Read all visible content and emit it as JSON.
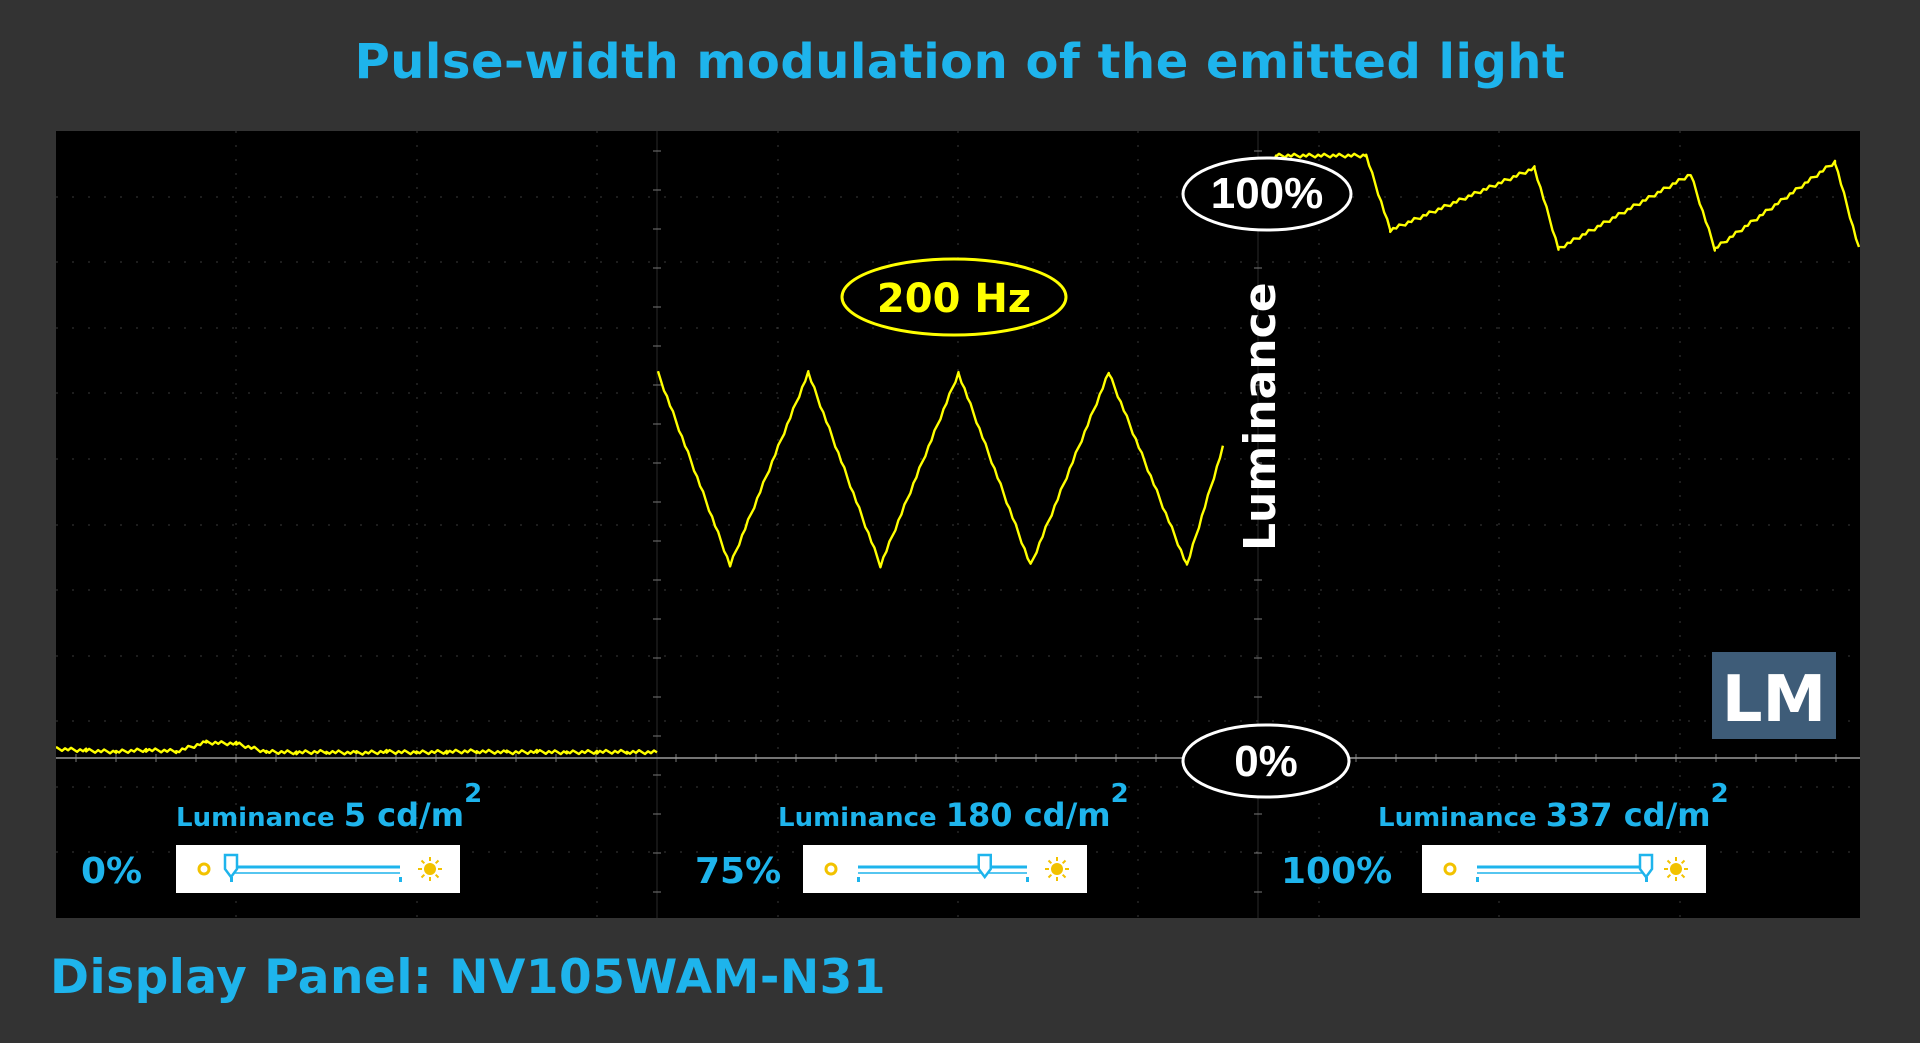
{
  "title": "Pulse-width modulation of the emitted light",
  "footer": "Display Panel: NV105WAM-N31",
  "frequency_label": "200 Hz",
  "luminance_axis_label": "Luminance",
  "level_100_label": "100%",
  "level_0_label": "0%",
  "logo_text": "LM",
  "colors": {
    "title": "#1eb4ec",
    "background": "#333333",
    "scope": "#000000",
    "trace": "#ffff00",
    "accent_icon": "#f2c200"
  },
  "panels": [
    {
      "luminance_word": "Luminance",
      "luminance_value": "5  cd/m",
      "sup": "2",
      "brightness_label": "0%",
      "slider_fraction": 0.0
    },
    {
      "luminance_word": "Luminance",
      "luminance_value": "180 cd/m",
      "sup": "2",
      "brightness_label": "75%",
      "slider_fraction": 0.75
    },
    {
      "luminance_word": "Luminance",
      "luminance_value": "337 cd/m",
      "sup": "2",
      "brightness_label": "100%",
      "slider_fraction": 1.0
    }
  ],
  "chart_data": {
    "type": "line",
    "title": "Pulse-width modulation of the emitted light",
    "ylabel": "Luminance",
    "ylim": [
      0,
      100
    ],
    "grid": true,
    "series": [
      {
        "name": "0%",
        "x": [
          0,
          0.5,
          1,
          1.5,
          2,
          2.5,
          3,
          3.5,
          4,
          4.5,
          5,
          5.5,
          6,
          6.5,
          7,
          7.5,
          8,
          8.5,
          9,
          9.5,
          10
        ],
        "y": [
          1.5,
          1.2,
          1.0,
          1.3,
          1.1,
          2.5,
          2.3,
          1.0,
          0.9,
          1.0,
          0.8,
          1.0,
          0.9,
          1.0,
          1.1,
          0.9,
          1.0,
          0.9,
          1.0,
          1.0,
          0.9
        ]
      },
      {
        "name": "75%",
        "x": [
          0,
          1.2,
          2.5,
          3.7,
          5.0,
          6.2,
          7.5,
          8.8,
          9.4
        ],
        "y": [
          62,
          31,
          62,
          31,
          62,
          31,
          62,
          31,
          50
        ]
      },
      {
        "name": "100%",
        "x": [
          0,
          0.3,
          1.8,
          2.2,
          4.6,
          5.0,
          7.2,
          7.6,
          9.6,
          10.0
        ],
        "y": [
          87,
          97,
          97,
          85,
          95,
          82,
          94,
          82,
          96,
          82
        ]
      }
    ]
  }
}
